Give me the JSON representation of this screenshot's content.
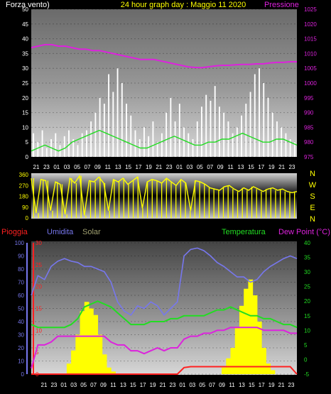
{
  "header": {
    "wind_label": "Forza vento)",
    "title": "24 hour graph day : Maggio 11 2020",
    "pressure_label": "Pressione"
  },
  "colors": {
    "wind_gust": "#ffffff",
    "wind_avg": "#22dd22",
    "pressure": "#dd22dd",
    "direction": "#ffff00",
    "rain": "#ff2020",
    "humidity": "#7777ee",
    "solar": "#ffff00",
    "temperature": "#22dd22",
    "dew_point": "#dd22dd",
    "title": "#ffff00"
  },
  "chart_data": [
    {
      "type": "bar",
      "id": "wind-pressure",
      "x_ticks": [
        "21",
        "23",
        "01",
        "03",
        "05",
        "07",
        "09",
        "11",
        "13",
        "15",
        "17",
        "19",
        "21",
        "23",
        "01",
        "03",
        "05",
        "07",
        "09",
        "11",
        "13",
        "15",
        "17",
        "19",
        "21",
        "23"
      ],
      "y_left_label": "Forza vento)",
      "y_left_ticks": [
        0,
        5,
        10,
        15,
        20,
        25,
        30,
        35,
        40,
        45,
        50
      ],
      "y_left_range": [
        0,
        50
      ],
      "y_right_label": "Pressione",
      "y_right_ticks": [
        975,
        980,
        985,
        990,
        995,
        1000,
        1005,
        1010,
        1015,
        1020,
        1025
      ],
      "y_right_range": [
        975,
        1025
      ],
      "series": [
        {
          "name": "Pressione",
          "type": "line",
          "values": [
            1012,
            1012.5,
            1013,
            1013,
            1012.5,
            1012.5,
            1012,
            1011.5,
            1011.5,
            1011,
            1011,
            1010.5,
            1010,
            1009.5,
            1009,
            1008.5,
            1008,
            1008,
            1008,
            1007.5,
            1007,
            1006.5,
            1006,
            1005.5,
            1005.3,
            1005.2,
            1005.5,
            1005.8,
            1006,
            1006,
            1006.2,
            1006.3,
            1006.3,
            1006.5,
            1006.5,
            1006.8,
            1007,
            1007,
            1007.2,
            1007.2
          ]
        },
        {
          "type": "bar",
          "values": [
            8,
            5,
            9,
            3,
            6,
            8,
            4,
            7,
            9,
            6,
            4,
            8,
            9,
            12,
            15,
            20,
            18,
            28,
            22,
            30,
            25,
            18,
            14,
            9,
            6,
            10,
            7,
            12,
            5,
            8,
            15,
            20,
            12,
            18,
            10,
            8,
            6,
            12,
            17,
            21,
            19,
            24,
            17,
            15,
            12,
            8,
            10,
            14,
            18,
            22,
            28,
            30,
            25,
            20,
            15,
            12,
            10,
            8,
            6,
            5
          ]
        },
        {
          "type": "line",
          "values": [
            2,
            3,
            4,
            3,
            2,
            3,
            5,
            6,
            7,
            8,
            9,
            8,
            7,
            6,
            5,
            4,
            3,
            3,
            4,
            5,
            6,
            7,
            6,
            5,
            4,
            4,
            5,
            5,
            6,
            6,
            7,
            8,
            7,
            6,
            5,
            5,
            6,
            6,
            5,
            4
          ]
        }
      ]
    },
    {
      "type": "line",
      "id": "wind-direction",
      "y_ticks": [
        0,
        90,
        180,
        270,
        360
      ],
      "y_range": [
        0,
        360
      ],
      "compass": [
        "N",
        "W",
        "S",
        "E",
        "N"
      ],
      "series": [
        {
          "type": "line",
          "values": [
            330,
            40,
            320,
            310,
            60,
            300,
            280,
            30,
            330,
            290,
            350,
            20,
            310,
            300,
            340,
            290,
            60,
            320,
            300,
            330,
            280,
            310,
            340,
            80,
            300,
            320,
            310,
            290,
            330,
            300,
            270,
            320,
            290,
            60,
            310,
            300,
            280,
            250,
            240,
            230,
            260,
            270,
            240,
            220,
            250,
            230,
            260,
            240,
            220,
            240,
            250,
            230,
            240,
            220,
            210,
            220
          ]
        }
      ]
    },
    {
      "type": "line",
      "id": "temp-humidity-rain",
      "x_ticks": [
        "21",
        "23",
        "01",
        "03",
        "05",
        "07",
        "09",
        "11",
        "13",
        "15",
        "17",
        "19",
        "21",
        "23",
        "01",
        "03",
        "05",
        "07",
        "09",
        "11",
        "13",
        "15",
        "17",
        "19",
        "21",
        "23"
      ],
      "labels": {
        "rain": "Pioggia",
        "humidity": "Umidita",
        "solar": "Solar",
        "temperature": "Temperatura",
        "dew_point": "Dew Point (°C)"
      },
      "humidity_ticks": [
        0,
        10,
        20,
        30,
        40,
        50,
        60,
        70,
        80,
        90,
        100
      ],
      "humidity_range": [
        0,
        100
      ],
      "rain_ticks": [
        0,
        5,
        10,
        15,
        20,
        25,
        30
      ],
      "rain_range": [
        0,
        30
      ],
      "temp_ticks": [
        -5,
        0,
        5,
        10,
        15,
        20,
        25,
        30,
        35,
        40
      ],
      "temp_range": [
        -5,
        40
      ],
      "series": [
        {
          "name": "Umidita",
          "type": "line",
          "values": [
            60,
            75,
            72,
            82,
            86,
            88,
            86,
            85,
            82,
            82,
            80,
            78,
            70,
            55,
            48,
            45,
            52,
            50,
            55,
            52,
            45,
            50,
            55,
            90,
            95,
            96,
            94,
            90,
            85,
            82,
            78,
            74,
            74,
            70,
            72,
            78,
            82,
            85,
            88,
            90,
            88
          ]
        },
        {
          "name": "Temperatura",
          "type": "line",
          "values": [
            12,
            11,
            11,
            11,
            11,
            11,
            12,
            14,
            18,
            19,
            20,
            19,
            18,
            16,
            14,
            12,
            12,
            12,
            13,
            13,
            13,
            14,
            14,
            15,
            15,
            15,
            15,
            16,
            17,
            17,
            18,
            17,
            16,
            15,
            15,
            14,
            14,
            13,
            12,
            12,
            11
          ]
        },
        {
          "name": "Dew Point (°C)",
          "type": "line",
          "values": [
            -3,
            5,
            5,
            6,
            8,
            8,
            8,
            8,
            8,
            8,
            8,
            8,
            6,
            5,
            5,
            3,
            3,
            2,
            3,
            4,
            3,
            4,
            4,
            7,
            8,
            8,
            9,
            9,
            10,
            10,
            11,
            11,
            11,
            11,
            11,
            10,
            10,
            10,
            10,
            9,
            9
          ]
        },
        {
          "name": "Pioggia",
          "type": "line",
          "values": [
            0,
            0,
            0,
            0,
            0,
            0,
            0,
            0,
            0,
            0,
            0,
            0,
            0,
            0,
            0,
            0,
            0,
            0,
            0,
            0,
            0,
            0,
            0,
            1.5,
            1.7,
            1.7,
            1.7,
            1.7,
            1.7,
            1.7,
            1.7,
            1.7,
            1.7,
            1.7,
            1.7,
            1.7,
            1.7,
            1.7,
            1.7,
            1.7,
            0
          ]
        },
        {
          "name": "Solar",
          "type": "area",
          "values": [
            0,
            0,
            0,
            0,
            0,
            0,
            0,
            0,
            8,
            18,
            30,
            48,
            55,
            50,
            45,
            30,
            15,
            5,
            2,
            0,
            0,
            0,
            0,
            0,
            0,
            0,
            0,
            0,
            0,
            0,
            0,
            0,
            0,
            0,
            0,
            0,
            0,
            0,
            0,
            0,
            0,
            0,
            0,
            5,
            12,
            20,
            35,
            52,
            65,
            72,
            60,
            40,
            20,
            8,
            3,
            0,
            0,
            0,
            0,
            0
          ]
        }
      ]
    }
  ]
}
